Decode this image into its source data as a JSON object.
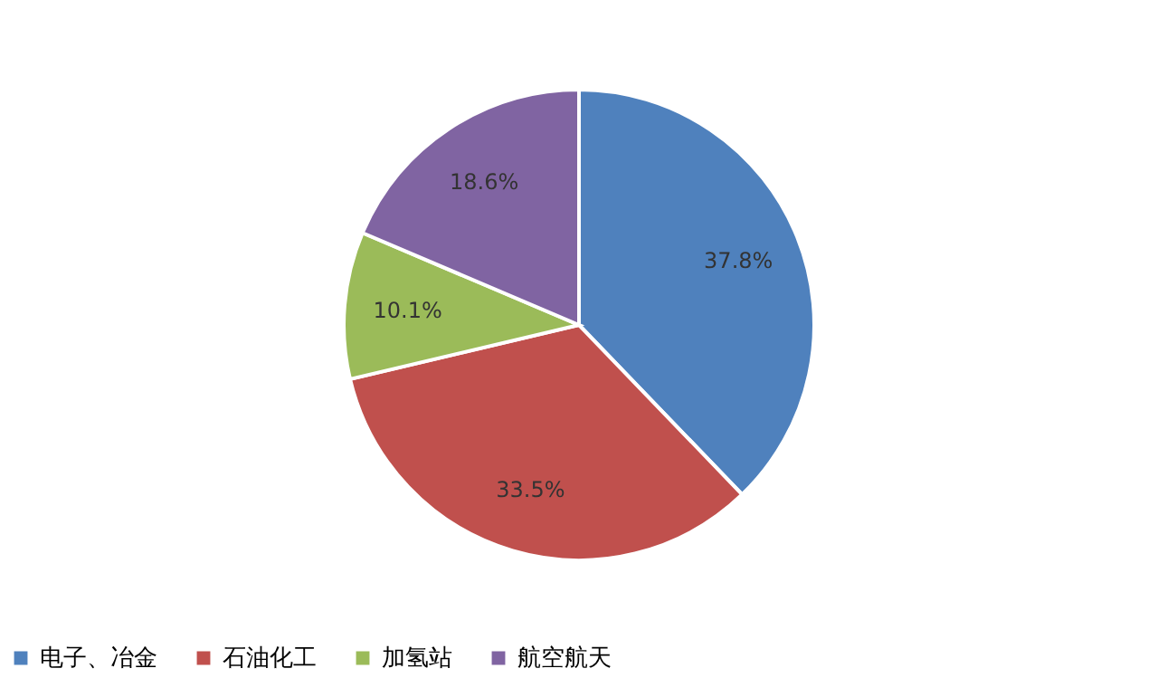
{
  "chart_data": {
    "type": "pie",
    "categories": [
      "电子、冶金",
      "石油化工",
      "加氢站",
      "航空航天"
    ],
    "values": [
      37.8,
      33.5,
      10.1,
      18.6
    ],
    "colors": [
      "#4f81bd",
      "#c0504d",
      "#9bbb59",
      "#8064a2"
    ],
    "value_labels": [
      "37.8%",
      "33.5%",
      "10.1%",
      "18.6%"
    ],
    "legend": "bottom"
  }
}
